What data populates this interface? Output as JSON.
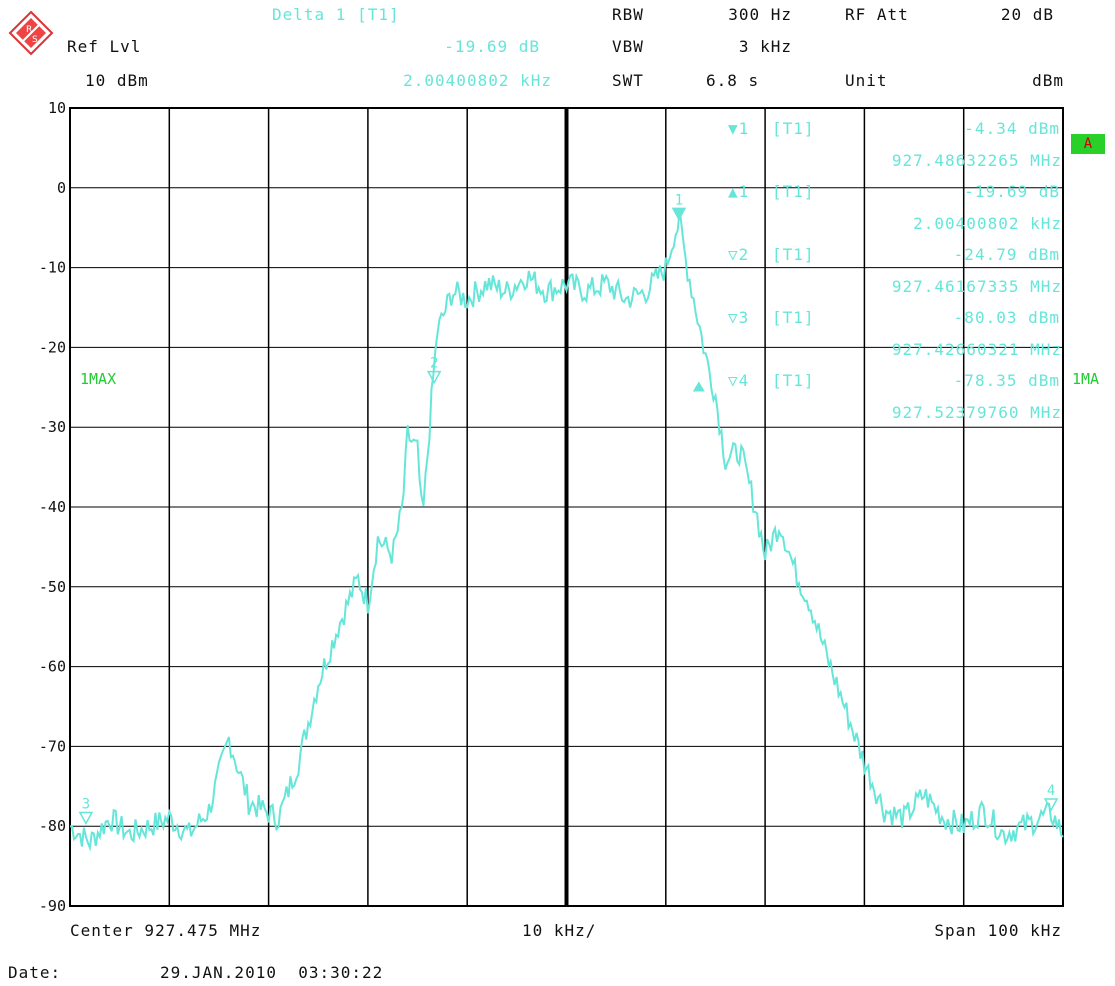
{
  "header": {
    "delta_title": "Delta 1 [T1]",
    "delta_level": "-19.69 dB",
    "delta_freq": "2.00400802 kHz",
    "ref_lvl_label": "Ref Lvl",
    "ref_lvl_value": "10 dBm",
    "rbw_label": "RBW",
    "rbw_value": "300 Hz",
    "vbw_label": "VBW",
    "vbw_value": "3 kHz",
    "swt_label": "SWT",
    "swt_value": "6.8 s",
    "rfatt_label": "RF Att",
    "rfatt_value": "20 dB",
    "unit_label": "Unit",
    "unit_value": "dBm"
  },
  "markers_table": [
    {
      "sym": "▼1",
      "trace": "[T1]",
      "level": "-4.34 dBm",
      "freq": "927.48632265 MHz"
    },
    {
      "sym": "▲1",
      "trace": "[T1]",
      "level": "-19.69 dB",
      "freq": "2.00400802 kHz"
    },
    {
      "sym": "▽2",
      "trace": "[T1]",
      "level": "-24.79 dBm",
      "freq": "927.46167335 MHz"
    },
    {
      "sym": "▽3",
      "trace": "[T1]",
      "level": "-80.03 dBm",
      "freq": "927.42660321 MHz"
    },
    {
      "sym": "▽4",
      "trace": "[T1]",
      "level": "-78.35 dBm",
      "freq": "927.52379760 MHz"
    }
  ],
  "side": {
    "trace_mode": "1MAX",
    "trace_mode_right": "1MA",
    "badge": "A"
  },
  "footer": {
    "center": "Center 927.475 MHz",
    "div": "10 kHz/",
    "span": "Span 100 kHz",
    "date_label": "Date:",
    "date_value": "29.JAN.2010  03:30:22"
  },
  "colors": {
    "trace": "#66e6d9",
    "grid": "#000000",
    "marker_text": "#66e6d9",
    "mode_text": "#22cc33"
  },
  "chart_data": {
    "type": "line",
    "title": "",
    "xlabel": "",
    "ylabel": "",
    "xlim": [
      927.425,
      927.525
    ],
    "ylim": [
      -90,
      10
    ],
    "x_unit": "MHz",
    "y_unit": "dBm",
    "yticks": [
      10,
      0,
      -10,
      -20,
      -30,
      -40,
      -50,
      -60,
      -70,
      -80,
      -90
    ],
    "yticklabels": [
      "10",
      "0",
      "-10",
      "-20",
      "-30",
      "-40",
      "-50",
      "-60",
      "-70",
      "-80",
      "-90"
    ],
    "grid": true,
    "series": [
      {
        "x": [
          927.425,
          927.427,
          927.429,
          927.431,
          927.433,
          927.435,
          927.437,
          927.439,
          927.441,
          927.443,
          927.4445,
          927.446,
          927.448,
          927.45,
          927.452,
          927.454,
          927.455,
          927.456,
          927.4575,
          927.4585,
          927.459,
          927.46,
          927.4605,
          927.4615,
          927.462,
          927.4635,
          927.465,
          927.467,
          927.469,
          927.471,
          927.473,
          927.475,
          927.477,
          927.479,
          927.481,
          927.483,
          927.485,
          927.4858,
          927.4864,
          927.487,
          927.488,
          927.489,
          927.49,
          927.491,
          927.4925,
          927.494,
          927.495,
          927.4965,
          927.498,
          927.4995,
          927.501,
          927.503,
          927.505,
          927.507,
          927.509,
          927.511,
          927.513,
          927.515,
          927.517,
          927.519,
          927.521,
          927.5238,
          927.525
        ],
        "y": [
          -80.0,
          -82,
          -79,
          -81,
          -80,
          -79,
          -81,
          -78,
          -69,
          -77,
          -78,
          -79,
          -72,
          -62,
          -55,
          -49,
          -52,
          -44,
          -46,
          -40,
          -31,
          -33,
          -42,
          -25,
          -18,
          -13,
          -14,
          -12,
          -13,
          -11,
          -13,
          -12,
          -13,
          -12,
          -14,
          -13,
          -10,
          -6,
          -4.3,
          -9,
          -15,
          -21,
          -26,
          -34,
          -33,
          -40,
          -46,
          -42,
          -48,
          -52,
          -58,
          -65,
          -72,
          -78,
          -79,
          -76,
          -79,
          -80,
          -78,
          -81,
          -80,
          -78.35,
          -81
        ]
      }
    ],
    "markers": [
      {
        "label": "1",
        "x": 927.48632265,
        "y": -4.34,
        "shape": "filled-down"
      },
      {
        "label": "2",
        "x": 927.46167335,
        "y": -24.79,
        "shape": "open-down"
      },
      {
        "label": "3",
        "x": 927.42660321,
        "y": -80.03,
        "shape": "open-down"
      },
      {
        "label": "4",
        "x": 927.5237976,
        "y": -78.35,
        "shape": "open-down"
      },
      {
        "label": "",
        "x": 927.48832265,
        "y": -24.03,
        "shape": "filled-up"
      }
    ]
  }
}
